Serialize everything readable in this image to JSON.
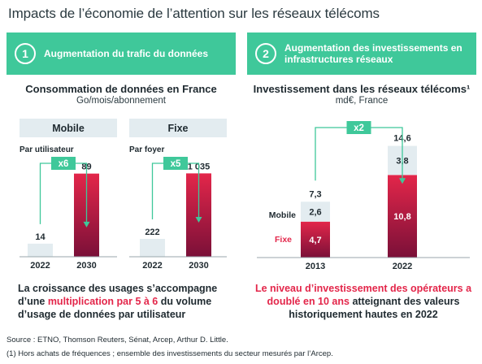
{
  "title": "Impacts de l’économie de l’attention sur les réseaux télécoms",
  "panel1": {
    "number": "1",
    "banner": "Augmentation du trafic du données",
    "chart_title": "Consommation de données en France",
    "chart_subtitle": "Go/mois/abonnement",
    "description_part1": "La croissance des usages s’accompagne d’une ",
    "description_highlight": "multiplication par 5 à 6",
    "description_part2": " du volume d’usage de données par utilisateur"
  },
  "panel2": {
    "number": "2",
    "banner": "Augmentation des investissements en infrastructures réseaux",
    "chart_title": "Investissement dans les réseaux télécoms¹",
    "chart_subtitle": "md€, France",
    "description_highlight": "Le niveau d’investissement des opérateurs a doublé en 10 ans",
    "description_rest": " atteignant des valeurs historiquement hautes en 2022"
  },
  "source": "Source : ETNO, Thomson Reuters, Sénat, Arcep, Arthur D. Little.",
  "note": "(1) Hors achats de fréquences ; ensemble des investissements du secteur mesurés par l’Arcep.",
  "colors": {
    "green": "#3fc89a",
    "light_bar": "#e3ecf0",
    "red_top": "#e3264a",
    "red_bottom": "#7a1038"
  },
  "chart_data": [
    {
      "type": "bar",
      "group": "Mobile",
      "sublabel": "Par utilisateur",
      "categories": [
        "2022",
        "2030"
      ],
      "values": [
        14,
        89
      ],
      "value_labels": [
        "14",
        "89"
      ],
      "multiplier": "x6",
      "ylim": [
        0,
        100
      ]
    },
    {
      "type": "bar",
      "group": "Fixe",
      "sublabel": "Par foyer",
      "categories": [
        "2022",
        "2030"
      ],
      "values": [
        222,
        1035
      ],
      "value_labels": [
        "222",
        "1 035"
      ],
      "multiplier": "x5",
      "ylim": [
        0,
        1160
      ]
    },
    {
      "type": "bar",
      "stacked": true,
      "categories": [
        "2013",
        "2022"
      ],
      "series": [
        {
          "name": "Fixe",
          "values": [
            4.7,
            10.8
          ],
          "labels": [
            "4,7",
            "10,8"
          ]
        },
        {
          "name": "Mobile",
          "values": [
            2.6,
            3.8
          ],
          "labels": [
            "2,6",
            "3,8"
          ]
        }
      ],
      "totals": [
        7.3,
        14.6
      ],
      "total_labels": [
        "7,3",
        "14,6"
      ],
      "multiplier": "x2",
      "ylim": [
        0,
        17
      ]
    }
  ]
}
